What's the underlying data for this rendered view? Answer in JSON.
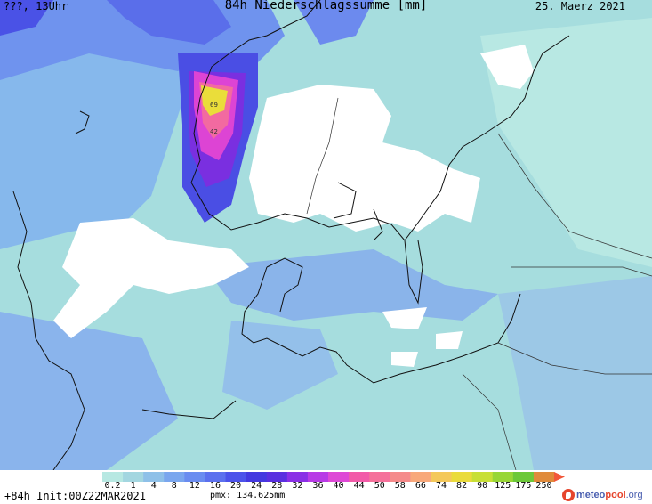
{
  "header": {
    "title": "84h Niederschlagssumme [mm]",
    "subtitle": "???, 13Uhr",
    "date": "25. Maerz 2021"
  },
  "map_labels": [
    "69",
    "42"
  ],
  "legend": {
    "labels": [
      "0.2",
      "1",
      "4",
      "8",
      "12",
      "16",
      "20",
      "24",
      "28",
      "32",
      "36",
      "40",
      "44",
      "50",
      "58",
      "66",
      "74",
      "82",
      "90",
      "125",
      "175",
      "250"
    ],
    "colors": [
      "#b7e8e2",
      "#a3d6e0",
      "#8ec0e8",
      "#7aa6ee",
      "#6a8cf0",
      "#5c70ee",
      "#4c52ea",
      "#4438e0",
      "#5a2fe0",
      "#8a2fe6",
      "#b83ae6",
      "#de48d6",
      "#f25aa8",
      "#f5709a",
      "#f58a8a",
      "#f8a87a",
      "#f4c85a",
      "#eadb3c",
      "#c8df36",
      "#98d636",
      "#6cc838",
      "#e08a3a",
      "#c06a2a"
    ],
    "colors_note_removed": ""
  },
  "footer": {
    "left": "+84h Init:00Z22MAR2021",
    "pmx": "pmx: 134.625mm"
  },
  "brand": {
    "part1": "meteo",
    "part2": "pool",
    "part3": ".org"
  }
}
